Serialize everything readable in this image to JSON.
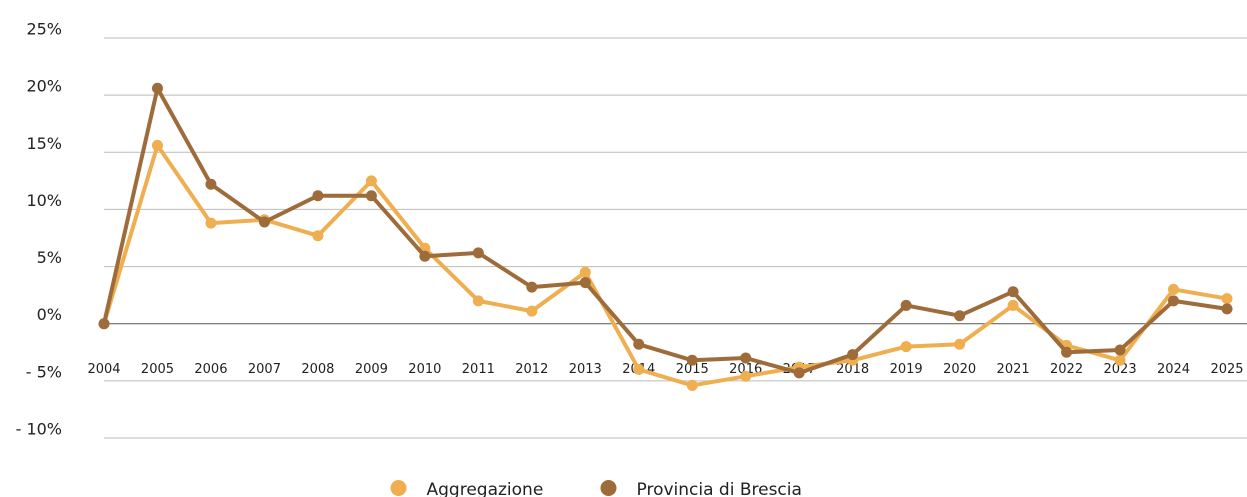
{
  "chart_data": {
    "type": "line",
    "categories": [
      "2004",
      "2005",
      "2006",
      "2007",
      "2008",
      "2009",
      "2010",
      "2011",
      "2012",
      "2013",
      "2014",
      "2015",
      "2016",
      "2017",
      "2018",
      "2019",
      "2020",
      "2021",
      "2022",
      "2023",
      "2024",
      "2025"
    ],
    "series": [
      {
        "name": "Aggregazione",
        "color": "#efae4f",
        "values": [
          0,
          15.6,
          8.8,
          9.1,
          7.7,
          12.5,
          6.6,
          2.0,
          1.1,
          4.5,
          -4.0,
          -5.4,
          -4.6,
          -3.8,
          -3.2,
          -2.0,
          -1.8,
          1.6,
          -1.9,
          -3.2,
          3.0,
          2.2
        ]
      },
      {
        "name": "Provincia di Brescia",
        "color": "#9e6b3a",
        "values": [
          0,
          20.6,
          12.2,
          8.9,
          11.2,
          11.2,
          5.9,
          6.2,
          3.2,
          3.6,
          -1.8,
          -3.2,
          -3.0,
          -4.3,
          -2.7,
          1.6,
          0.7,
          2.8,
          -2.5,
          -2.3,
          2.0,
          1.3
        ]
      }
    ],
    "ylim": [
      -10,
      25
    ],
    "yticks": [
      {
        "value": 25,
        "label": "25%"
      },
      {
        "value": 20,
        "label": "20%"
      },
      {
        "value": 15,
        "label": "15%"
      },
      {
        "value": 10,
        "label": "10%"
      },
      {
        "value": 5,
        "label": "5%"
      },
      {
        "value": 0,
        "label": "0%"
      },
      {
        "value": -5,
        "label": "- 5%"
      },
      {
        "value": -10,
        "label": "- 10%"
      }
    ],
    "grid": true,
    "legend": "bottom"
  }
}
